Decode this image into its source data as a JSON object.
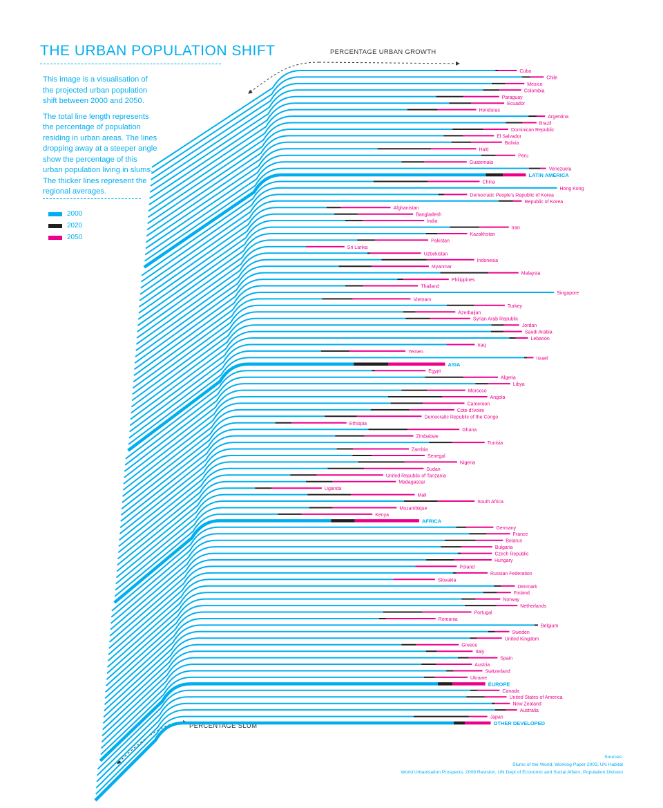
{
  "title": "THE URBAN POPULATION SHIFT",
  "intro": {
    "p1": "This image is a visualisation of the projected urban population shift between 2000 and 2050.",
    "p2": "The total line length represents the percentage of population residing in urban areas. The lines dropping away at a steeper angle show the percentage of this urban population living in slums. The thicker lines represent the regional averages."
  },
  "legend": [
    {
      "label": "2000",
      "color": "#00aeef"
    },
    {
      "label": "2020",
      "color": "#231f20"
    },
    {
      "label": "2050",
      "color": "#ec008c"
    }
  ],
  "axis_labels": {
    "growth": "PERCENTAGE URBAN GROWTH",
    "slum": "PERCENTAGE SLUM"
  },
  "sources": {
    "heading": "Sources:",
    "line1": "Slums of the World, Working Paper 2003, UN Habitat",
    "line2": "World Urbanisation Prospects, 2009 Revision, UN Dept of Economic and Social Affairs, Population Division"
  },
  "chart_data": {
    "type": "line",
    "series": [
      {
        "name": "2000",
        "color": "#00aeef"
      },
      {
        "name": "2020",
        "color": "#231f20"
      },
      {
        "name": "2050",
        "color": "#ec008c"
      }
    ],
    "regions": [
      {
        "name": "LATIN AMERICA",
        "rows": [
          {
            "name": "Cuba",
            "urban": [
              76,
              77,
              84
            ]
          },
          {
            "name": "Chile",
            "urban": [
              86,
              89,
              94
            ]
          },
          {
            "name": "Mexico",
            "urban": [
              75,
              80,
              87
            ]
          },
          {
            "name": "Colombia",
            "urban": [
              72,
              78,
              86
            ]
          },
          {
            "name": "Paraguay",
            "urban": [
              55,
              65,
              78
            ]
          },
          {
            "name": "Ecuador",
            "urban": [
              60,
              68,
              80
            ]
          },
          {
            "name": "Honduras",
            "urban": [
              45,
              56,
              70
            ]
          },
          {
            "name": "Argentina",
            "urban": [
              89,
              92,
              95
            ]
          },
          {
            "name": "Brazil",
            "urban": [
              81,
              87,
              92
            ]
          },
          {
            "name": "Dominican Republic",
            "urban": [
              62,
              73,
              82
            ]
          },
          {
            "name": "El Salvador",
            "urban": [
              59,
              66,
              77
            ]
          },
          {
            "name": "Bolivia",
            "urban": [
              62,
              69,
              80
            ]
          },
          {
            "name": "Haiti",
            "urban": [
              36,
              55,
              71
            ]
          },
          {
            "name": "Peru",
            "urban": [
              73,
              78,
              85
            ]
          },
          {
            "name": "Guatemala",
            "urban": [
              45,
              53,
              68
            ]
          },
          {
            "name": "Venezuela",
            "urban": [
              90,
              94,
              96
            ]
          },
          {
            "name": "LATIN AMERICA",
            "urban": [
              75,
              81,
              89
            ],
            "average": true
          }
        ]
      },
      {
        "name": "ASIA",
        "rows": [
          {
            "name": "China",
            "urban": [
              36,
              55,
              73
            ]
          },
          {
            "name": "Hong Kong",
            "urban": [
              100,
              100,
              100
            ]
          },
          {
            "name": "Democratic People's Republic of Korea",
            "urban": [
              59,
              61,
              69
            ]
          },
          {
            "name": "Republic of Korea",
            "urban": [
              80,
              85,
              88
            ]
          },
          {
            "name": "Afghanistan",
            "urban": [
              21,
              26,
              43
            ]
          },
          {
            "name": "Bangladesh",
            "urban": [
              24,
              32,
              51
            ]
          },
          {
            "name": "India",
            "urban": [
              28,
              34,
              55
            ]
          },
          {
            "name": "Iran",
            "urban": [
              64,
              74,
              84
            ]
          },
          {
            "name": "Kazakhstan",
            "urban": [
              56,
              60,
              70
            ]
          },
          {
            "name": "Pakistan",
            "urban": [
              33,
              39,
              57
            ]
          },
          {
            "name": "Sri Lanka",
            "urban": [
              16,
              16,
              29
            ]
          },
          {
            "name": "Uzbekistan",
            "urban": [
              37,
              38,
              55
            ]
          },
          {
            "name": "Indonesia",
            "urban": [
              42,
              57,
              73
            ]
          },
          {
            "name": "Myanmar",
            "urban": [
              28,
              39,
              58
            ]
          },
          {
            "name": "Malaysia",
            "urban": [
              62,
              78,
              88
            ]
          },
          {
            "name": "Philippines",
            "urban": [
              48,
              50,
              65
            ]
          },
          {
            "name": "Thailand",
            "urban": [
              31,
              37,
              55
            ]
          },
          {
            "name": "Singapore",
            "urban": [
              100,
              100,
              100
            ]
          },
          {
            "name": "Vietnam",
            "urban": [
              24,
              34,
              53
            ]
          },
          {
            "name": "Turkey",
            "urban": [
              65,
              74,
              84
            ]
          },
          {
            "name": "Azerbaijan",
            "urban": [
              51,
              55,
              68
            ]
          },
          {
            "name": "Syrian Arab Republic",
            "urban": [
              52,
              60,
              73
            ]
          },
          {
            "name": "Jordan",
            "urban": [
              80,
              84,
              89
            ]
          },
          {
            "name": "Saudi Arabia",
            "urban": [
              80,
              84,
              90
            ]
          },
          {
            "name": "Lebanon",
            "urban": [
              86,
              88,
              92
            ]
          },
          {
            "name": "Iraq",
            "urban": [
              68,
              66,
              75
            ]
          },
          {
            "name": "Yemen",
            "urban": [
              26,
              35,
              53
            ]
          },
          {
            "name": "Israel",
            "urban": [
              91,
              92,
              94
            ]
          },
          {
            "name": "ASIA",
            "urban": [
              37,
              48,
              66
            ],
            "average": true
          }
        ]
      },
      {
        "name": "AFRICA",
        "rows": [
          {
            "name": "Egypt",
            "urban": [
              43,
              44,
              60
            ]
          },
          {
            "name": "Algeria",
            "urban": [
              60,
              72,
              83
            ]
          },
          {
            "name": "Libya",
            "urban": [
              76,
              80,
              87
            ]
          },
          {
            "name": "Morocco",
            "urban": [
              53,
              61,
              73
            ]
          },
          {
            "name": "Angola",
            "urban": [
              49,
              66,
              80
            ]
          },
          {
            "name": "Cameroon",
            "urban": [
              50,
              60,
              73
            ]
          },
          {
            "name": "Cote d'Ivoire",
            "urban": [
              44,
              56,
              70
            ]
          },
          {
            "name": "Democratic Republic of the Congo",
            "urban": [
              30,
              40,
              60
            ]
          },
          {
            "name": "Ethiopia",
            "urban": [
              15,
              20,
              37
            ]
          },
          {
            "name": "Ghana",
            "urban": [
              44,
              56,
              72
            ]
          },
          {
            "name": "Zimbabwe",
            "urban": [
              34,
              43,
              58
            ]
          },
          {
            "name": "Tunisia",
            "urban": [
              63,
              70,
              80
            ]
          },
          {
            "name": "Zambia",
            "urban": [
              35,
              40,
              57
            ]
          },
          {
            "name": "Senegal",
            "urban": [
              40,
              46,
              62
            ]
          },
          {
            "name": "Nigeria",
            "urban": [
              42,
              56,
              72
            ]
          },
          {
            "name": "Sudan",
            "urban": [
              33,
              44,
              62
            ]
          },
          {
            "name": "United Republic of Tanzania",
            "urban": [
              22,
              30,
              50
            ]
          },
          {
            "name": "Madagascar",
            "urban": [
              27,
              35,
              54
            ]
          },
          {
            "name": "Uganda",
            "urban": [
              12,
              17,
              32
            ]
          },
          {
            "name": "Mali",
            "urban": [
              28,
              41,
              60
            ]
          },
          {
            "name": "South Africa",
            "urban": [
              57,
              67,
              78
            ]
          },
          {
            "name": "Mozambique",
            "urban": [
              29,
              36,
              55
            ]
          },
          {
            "name": "Kenya",
            "urban": [
              20,
              27,
              48
            ]
          },
          {
            "name": "AFRICA",
            "urban": [
              36,
              43,
              62
            ],
            "average": true
          }
        ]
      },
      {
        "name": "EUROPE",
        "rows": [
          {
            "name": "Germany",
            "urban": [
              73,
              76,
              84
            ]
          },
          {
            "name": "France",
            "urban": [
              77,
              82,
              89
            ]
          },
          {
            "name": "Belarus",
            "urban": [
              70,
              79,
              87
            ]
          },
          {
            "name": "Bulgaria",
            "urban": [
              69,
              75,
              84
            ]
          },
          {
            "name": "Czech Republic",
            "urban": [
              74,
              75,
              84
            ]
          },
          {
            "name": "Hungary",
            "urban": [
              65,
              73,
              84
            ]
          },
          {
            "name": "Poland",
            "urban": [
              62,
              62,
              74
            ]
          },
          {
            "name": "Russian Federation",
            "urban": [
              73,
              74,
              83
            ]
          },
          {
            "name": "Slovakia",
            "urban": [
              56,
              56,
              68
            ]
          },
          {
            "name": "Denmark",
            "urban": [
              85,
              87,
              91
            ]
          },
          {
            "name": "Finland",
            "urban": [
              82,
              86,
              90
            ]
          },
          {
            "name": "Norway",
            "urban": [
              76,
              80,
              87
            ]
          },
          {
            "name": "Netherlands",
            "urban": [
              77,
              86,
              92
            ]
          },
          {
            "name": "Portugal",
            "urban": [
              54,
              65,
              79
            ]
          },
          {
            "name": "Romania",
            "urban": [
              53,
              55,
              69
            ]
          },
          {
            "name": "Belgium",
            "urban": [
              97,
              98,
              98
            ]
          },
          {
            "name": "Sweden",
            "urban": [
              84,
              86,
              90
            ]
          },
          {
            "name": "United Kingdom",
            "urban": [
              79,
              81,
              88
            ]
          },
          {
            "name": "Greece",
            "urban": [
              60,
              64,
              76
            ]
          },
          {
            "name": "Italy",
            "urban": [
              67,
              70,
              80
            ]
          },
          {
            "name": "Spain",
            "urban": [
              76,
              79,
              87
            ]
          },
          {
            "name": "Austria",
            "urban": [
              66,
              70,
              80
            ]
          },
          {
            "name": "Switzerland",
            "urban": [
              73,
              75,
              83
            ]
          },
          {
            "name": "Ukraine",
            "urban": [
              67,
              70,
              79
            ]
          },
          {
            "name": "EUROPE",
            "urban": [
              71,
              75,
              84
            ],
            "average": true
          }
        ]
      },
      {
        "name": "OTHER DEVELOPED",
        "rows": [
          {
            "name": "Canada",
            "urban": [
              80,
              82,
              88
            ]
          },
          {
            "name": "United States of America",
            "urban": [
              79,
              84,
              90
            ]
          },
          {
            "name": "New Zealand",
            "urban": [
              86,
              87,
              91
            ]
          },
          {
            "name": "Australia",
            "urban": [
              87,
              90,
              93
            ]
          },
          {
            "name": "Japan",
            "urban": [
              65,
              80,
              85
            ]
          },
          {
            "name": "OTHER DEVELOPED",
            "urban": [
              76,
              79,
              86
            ],
            "average": true
          }
        ]
      }
    ]
  }
}
